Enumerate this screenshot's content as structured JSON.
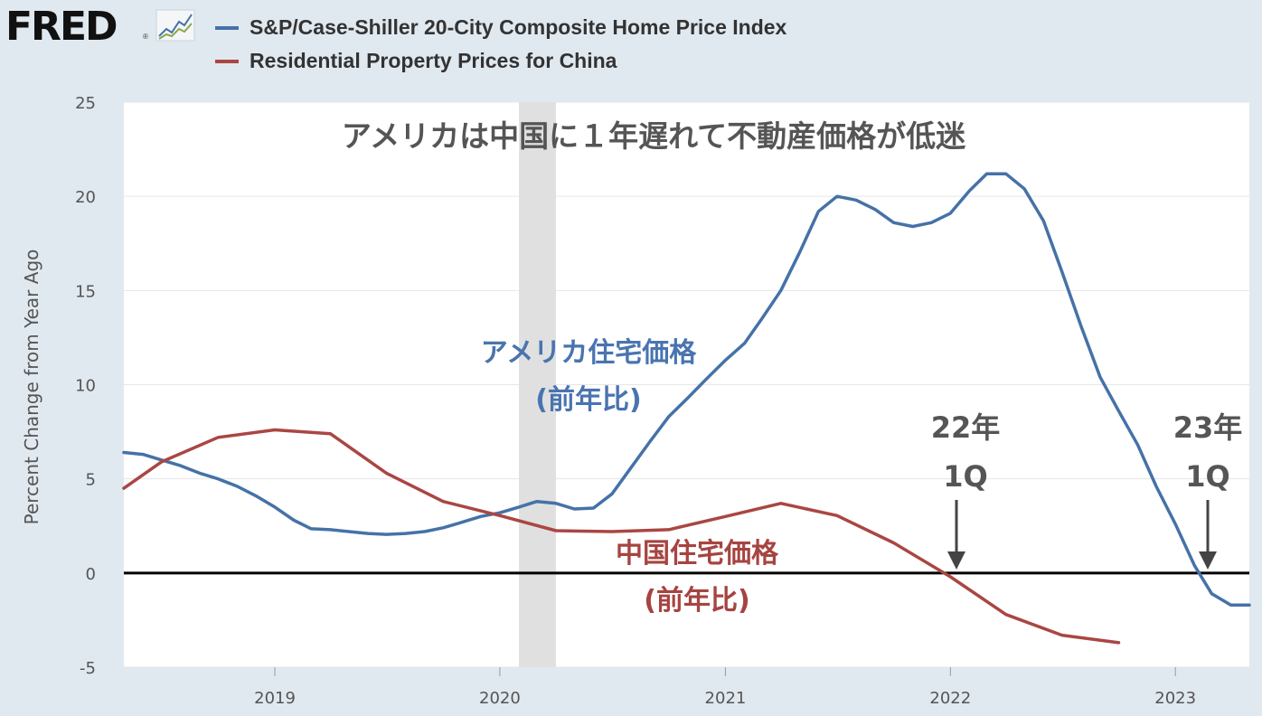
{
  "header": {
    "logo": "FRED",
    "logo_icon": "line-chart-icon"
  },
  "legend": [
    {
      "label": "S&P/Case-Shiller 20-City Composite Home Price Index",
      "color": "#4572a7"
    },
    {
      "label": "Residential Property Prices for China",
      "color": "#aa4643"
    }
  ],
  "chart_data": {
    "type": "line",
    "ylabel": "Percent Change from Year Ago",
    "ylim": [
      -5,
      25
    ],
    "yticks": [
      -5,
      0,
      5,
      10,
      15,
      20,
      25
    ],
    "xlim": [
      "2018-05-01",
      "2023-05-01"
    ],
    "xticks": [
      "2019",
      "2020",
      "2021",
      "2022",
      "2023"
    ],
    "zero_line": 0,
    "recession_band": [
      "2020-02-01",
      "2020-04-01"
    ],
    "series": [
      {
        "name": "S&P/Case-Shiller 20-City Composite Home Price Index",
        "color": "#4572a7",
        "points": [
          [
            "2018-05-01",
            6.4
          ],
          [
            "2018-06-01",
            6.3
          ],
          [
            "2018-07-01",
            6.0
          ],
          [
            "2018-08-01",
            5.7
          ],
          [
            "2018-09-01",
            5.3
          ],
          [
            "2018-10-01",
            5.0
          ],
          [
            "2018-11-01",
            4.6
          ],
          [
            "2018-12-01",
            4.1
          ],
          [
            "2019-01-01",
            3.5
          ],
          [
            "2019-02-01",
            2.8
          ],
          [
            "2019-03-01",
            2.35
          ],
          [
            "2019-04-01",
            2.3
          ],
          [
            "2019-05-01",
            2.2
          ],
          [
            "2019-06-01",
            2.1
          ],
          [
            "2019-07-01",
            2.05
          ],
          [
            "2019-08-01",
            2.1
          ],
          [
            "2019-09-01",
            2.2
          ],
          [
            "2019-10-01",
            2.4
          ],
          [
            "2019-11-01",
            2.7
          ],
          [
            "2019-12-01",
            3.0
          ],
          [
            "2020-01-01",
            3.2
          ],
          [
            "2020-02-01",
            3.5
          ],
          [
            "2020-03-01",
            3.8
          ],
          [
            "2020-04-01",
            3.7
          ],
          [
            "2020-05-01",
            3.4
          ],
          [
            "2020-06-01",
            3.45
          ],
          [
            "2020-07-01",
            4.2
          ],
          [
            "2020-08-01",
            5.6
          ],
          [
            "2020-09-01",
            7.0
          ],
          [
            "2020-10-01",
            8.3
          ],
          [
            "2020-11-01",
            9.3
          ],
          [
            "2020-12-01",
            10.3
          ],
          [
            "2021-01-01",
            11.3
          ],
          [
            "2021-02-01",
            12.2
          ],
          [
            "2021-03-01",
            13.5
          ],
          [
            "2021-04-01",
            15.0
          ],
          [
            "2021-05-01",
            17.0
          ],
          [
            "2021-06-01",
            19.2
          ],
          [
            "2021-07-01",
            20.0
          ],
          [
            "2021-08-01",
            19.8
          ],
          [
            "2021-09-01",
            19.3
          ],
          [
            "2021-10-01",
            18.6
          ],
          [
            "2021-11-01",
            18.4
          ],
          [
            "2021-12-01",
            18.6
          ],
          [
            "2022-01-01",
            19.1
          ],
          [
            "2022-02-01",
            20.3
          ],
          [
            "2022-03-01",
            21.2
          ],
          [
            "2022-04-01",
            21.2
          ],
          [
            "2022-05-01",
            20.4
          ],
          [
            "2022-06-01",
            18.7
          ],
          [
            "2022-07-01",
            16.0
          ],
          [
            "2022-08-01",
            13.1
          ],
          [
            "2022-09-01",
            10.4
          ],
          [
            "2022-10-01",
            8.6
          ],
          [
            "2022-11-01",
            6.8
          ],
          [
            "2022-12-01",
            4.6
          ],
          [
            "2023-01-01",
            2.6
          ],
          [
            "2023-02-01",
            0.4
          ],
          [
            "2023-03-01",
            -1.1
          ],
          [
            "2023-04-01",
            -1.7
          ],
          [
            "2023-05-01",
            -1.7
          ]
        ]
      },
      {
        "name": "Residential Property Prices for China",
        "color": "#aa4643",
        "points": [
          [
            "2018-04-01",
            4.5
          ],
          [
            "2018-07-01",
            5.9
          ],
          [
            "2018-10-01",
            7.2
          ],
          [
            "2019-01-01",
            7.6
          ],
          [
            "2019-04-01",
            7.4
          ],
          [
            "2019-07-01",
            5.3
          ],
          [
            "2019-10-01",
            3.8
          ],
          [
            "2020-01-01",
            3.05
          ],
          [
            "2020-04-01",
            2.25
          ],
          [
            "2020-07-01",
            2.2
          ],
          [
            "2020-10-01",
            2.3
          ],
          [
            "2021-01-01",
            3.0
          ],
          [
            "2021-04-01",
            3.7
          ],
          [
            "2021-07-01",
            3.05
          ],
          [
            "2021-10-01",
            1.6
          ],
          [
            "2022-01-01",
            -0.2
          ],
          [
            "2022-04-01",
            -2.2
          ],
          [
            "2022-07-01",
            -3.3
          ],
          [
            "2022-10-01",
            -3.7
          ]
        ]
      }
    ],
    "annotations": {
      "title": "アメリカは中国に１年遅れて不動産価格が低迷",
      "us_label_line1": "アメリカ住宅価格",
      "us_label_line2": "(前年比)",
      "china_label_line1": "中国住宅価格",
      "china_label_line2": "(前年比)",
      "marker_2022_line1": "22年",
      "marker_2022_line2": "1Q",
      "marker_2023_line1": "23年",
      "marker_2023_line2": "1Q"
    }
  }
}
